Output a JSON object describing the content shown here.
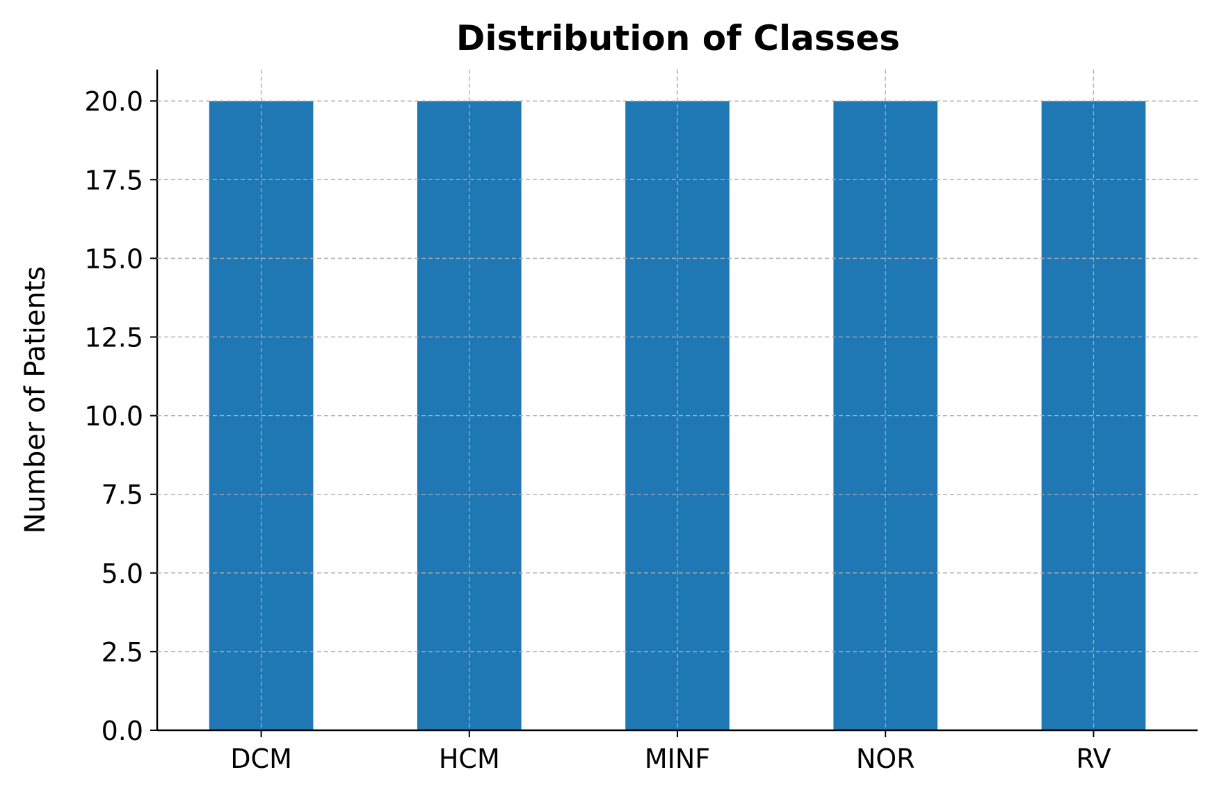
{
  "chart_data": {
    "type": "bar",
    "title": "Distribution of Classes",
    "xlabel": "",
    "ylabel": "Number of Patients",
    "categories": [
      "DCM",
      "HCM",
      "MINF",
      "NOR",
      "RV"
    ],
    "values": [
      20,
      20,
      20,
      20,
      20
    ],
    "ylim": [
      0,
      21
    ],
    "yticks": [
      0.0,
      2.5,
      5.0,
      7.5,
      10.0,
      12.5,
      15.0,
      17.5,
      20.0
    ],
    "ytick_labels": [
      "0.0",
      "2.5",
      "5.0",
      "7.5",
      "10.0",
      "12.5",
      "15.0",
      "17.5",
      "20.0"
    ],
    "grid": true,
    "legend": "none",
    "colors": {
      "bar": "#1f77b4",
      "grid": "#b0b0b0",
      "axis": "#000000"
    }
  }
}
